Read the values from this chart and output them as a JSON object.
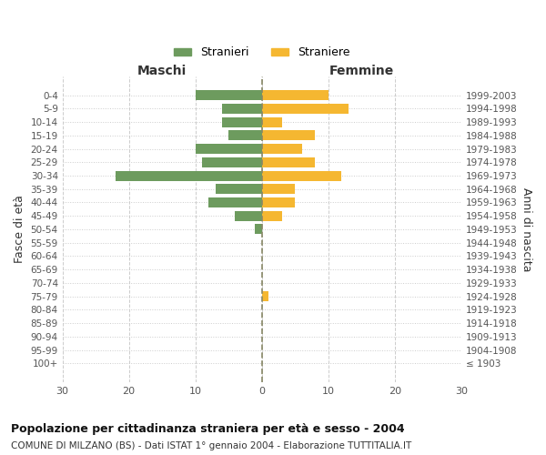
{
  "age_groups": [
    "100+",
    "95-99",
    "90-94",
    "85-89",
    "80-84",
    "75-79",
    "70-74",
    "65-69",
    "60-64",
    "55-59",
    "50-54",
    "45-49",
    "40-44",
    "35-39",
    "30-34",
    "25-29",
    "20-24",
    "15-19",
    "10-14",
    "5-9",
    "0-4"
  ],
  "birth_years": [
    "≤ 1903",
    "1904-1908",
    "1909-1913",
    "1914-1918",
    "1919-1923",
    "1924-1928",
    "1929-1933",
    "1934-1938",
    "1939-1943",
    "1944-1948",
    "1949-1953",
    "1954-1958",
    "1959-1963",
    "1964-1968",
    "1969-1973",
    "1974-1978",
    "1979-1983",
    "1984-1988",
    "1989-1993",
    "1994-1998",
    "1999-2003"
  ],
  "males": [
    0,
    0,
    0,
    0,
    0,
    0,
    0,
    0,
    0,
    0,
    1,
    4,
    8,
    7,
    22,
    9,
    10,
    5,
    6,
    6,
    10
  ],
  "females": [
    0,
    0,
    0,
    0,
    0,
    1,
    0,
    0,
    0,
    0,
    0,
    3,
    5,
    5,
    12,
    8,
    6,
    8,
    3,
    13,
    10
  ],
  "male_color": "#6d9b5e",
  "female_color": "#f5b731",
  "male_label": "Stranieri",
  "female_label": "Straniere",
  "xlim": 30,
  "xlabel_left": "Maschi",
  "xlabel_right": "Femmine",
  "ylabel_left": "Fasce di età",
  "ylabel_right": "Anni di nascita",
  "title": "Popolazione per cittadinanza straniera per età e sesso - 2004",
  "subtitle": "COMUNE DI MILZANO (BS) - Dati ISTAT 1° gennaio 2004 - Elaborazione TUTTITALIA.IT",
  "background_color": "#ffffff",
  "grid_color": "#cccccc",
  "tick_color": "#555555"
}
